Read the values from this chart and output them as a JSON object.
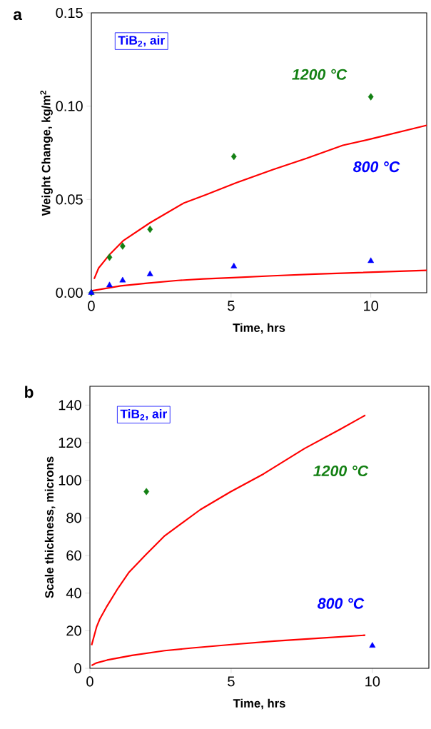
{
  "chart_data": [
    {
      "type": "scatter",
      "title": "a",
      "xlabel": "Time, hrs",
      "ylabel": "Weight Change, kg/m$^{2}$",
      "annotations": [
        "TiB$_{2}$, air"
      ],
      "xlim": [
        0,
        12
      ],
      "xticks": [
        0,
        5,
        10
      ],
      "ylim": [
        0,
        0.15
      ],
      "yticks": [
        {
          "value": 0,
          "label": "0.00"
        },
        {
          "value": 0.05,
          "label": "0.05"
        },
        {
          "value": 0.1,
          "label": "0.10"
        },
        {
          "value": 0.15,
          "label": "0.15"
        }
      ],
      "series": [
        {
          "name": "1200 °C",
          "marker": "diamond",
          "color": "#138013",
          "x": [
            0,
            0.65,
            1.12,
            2.1,
            5.1,
            10
          ],
          "values": [
            0,
            0.019,
            0.025,
            0.034,
            0.073,
            0.105
          ]
        },
        {
          "name": "800 °C",
          "marker": "triangle",
          "color": "#0000ff",
          "x": [
            0,
            0.65,
            1.12,
            2.1,
            5.1,
            10
          ],
          "values": [
            0,
            0.004,
            0.0066,
            0.0099,
            0.0141,
            0.017
          ]
        },
        {
          "type": "line",
          "color": "#ff0000",
          "x": [
            0.1,
            0.26,
            0.66,
            1.15,
            2.1,
            3.3,
            4.1,
            5.2,
            6.5,
            7.7,
            9,
            10,
            12
          ],
          "values": [
            0.0074,
            0.0132,
            0.0206,
            0.028,
            0.0375,
            0.048,
            0.0525,
            0.059,
            0.066,
            0.072,
            0.079,
            0.0824,
            0.0897
          ]
        },
        {
          "type": "line",
          "color": "#ff0000",
          "x": [
            0,
            1.05,
            2,
            3.1,
            4,
            5.07,
            6.5,
            8,
            10,
            12
          ],
          "values": [
            0.001,
            0.0037,
            0.0051,
            0.0066,
            0.0074,
            0.0081,
            0.0091,
            0.01,
            0.011,
            0.012
          ]
        }
      ]
    },
    {
      "type": "scatter",
      "title": "b",
      "xlabel": "Time, hrs",
      "ylabel": "Scale thickness, microns",
      "annotations": [
        "TiB$_{2}$, air"
      ],
      "xlim": [
        0,
        12
      ],
      "xticks": [
        0,
        5,
        10
      ],
      "ylim": [
        0,
        150
      ],
      "yticks": [
        0,
        20,
        40,
        60,
        80,
        100,
        120,
        140
      ],
      "series": [
        {
          "name": "1200 °C",
          "marker": "diamond",
          "color": "#138013",
          "x": [
            2
          ],
          "values": [
            94
          ]
        },
        {
          "name": "800 °C",
          "marker": "triangle",
          "color": "#0000ff",
          "x": [
            10
          ],
          "values": [
            12
          ]
        },
        {
          "type": "line",
          "color": "#ff0000",
          "x": [
            0.06,
            0.24,
            0.35,
            0.61,
            1,
            1.39,
            1.97,
            2.65,
            3.91,
            4.98,
            6.15,
            7.6,
            8.86,
            9.75
          ],
          "values": [
            12.3,
            22.2,
            26.2,
            33.2,
            42.7,
            51.2,
            60.3,
            70.5,
            84.4,
            93.9,
            103.4,
            116.9,
            127.1,
            134.6
          ]
        },
        {
          "type": "line",
          "color": "#ff0000",
          "x": [
            0.06,
            0.22,
            0.61,
            1.49,
            2.65,
            3.62,
            5.08,
            6.53,
            7.99,
            9.75
          ],
          "values": [
            1.5,
            2.8,
            4.4,
            6.9,
            9.4,
            10.8,
            12.7,
            14.5,
            15.9,
            17.6
          ]
        }
      ]
    }
  ]
}
